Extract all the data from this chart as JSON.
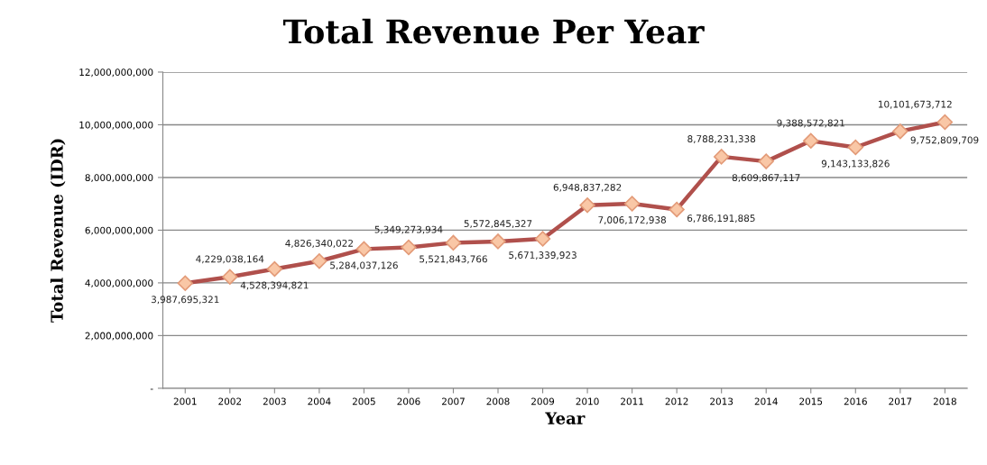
{
  "chart_data": {
    "type": "line",
    "title": "Total Revenue Per Year",
    "xlabel": "Year",
    "ylabel": "Total Revenue (IDR)",
    "categories": [
      "2001",
      "2002",
      "2003",
      "2004",
      "2005",
      "2006",
      "2007",
      "2008",
      "2009",
      "2010",
      "2011",
      "2012",
      "2013",
      "2014",
      "2015",
      "2016",
      "2017",
      "2018"
    ],
    "series": [
      {
        "color": "#b0504c",
        "values": [
          3987695321,
          4229038164,
          4528394821,
          4826340022,
          5284037126,
          5349273934,
          5521843766,
          5572845327,
          5671339923,
          6948837282,
          7006172938,
          6786191885,
          8788231338,
          8609867117,
          9388572821,
          9143133826,
          9752809709,
          10101673712
        ],
        "value_labels": [
          "3,987,695,321",
          "4,229,038,164",
          "4,528,394,821",
          "4,826,340,022",
          "5,284,037,126",
          "5,349,273,934",
          "5,521,843,766",
          "5,572,845,327",
          "5,671,339,923",
          "6,948,837,282",
          "7,006,172,938",
          "6,786,191,885",
          "8,788,231,338",
          "8,609,867,117",
          "9,388,572,821",
          "9,143,133,826",
          "9,752,809,709",
          "10,101,673,712"
        ]
      }
    ],
    "ylim": [
      0,
      12000000000
    ],
    "yticks": [
      {
        "value": 0,
        "label": "-"
      },
      {
        "value": 2000000000,
        "label": "2,000,000,000"
      },
      {
        "value": 4000000000,
        "label": "4,000,000,000"
      },
      {
        "value": 6000000000,
        "label": "6,000,000,000"
      },
      {
        "value": 8000000000,
        "label": "8,000,000,000"
      },
      {
        "value": 10000000000,
        "label": "10,000,000,000"
      },
      {
        "value": 12000000000,
        "label": "12,000,000,000"
      }
    ],
    "grid": "y",
    "marker": "diamond",
    "line_style": "solid",
    "legend": false
  }
}
